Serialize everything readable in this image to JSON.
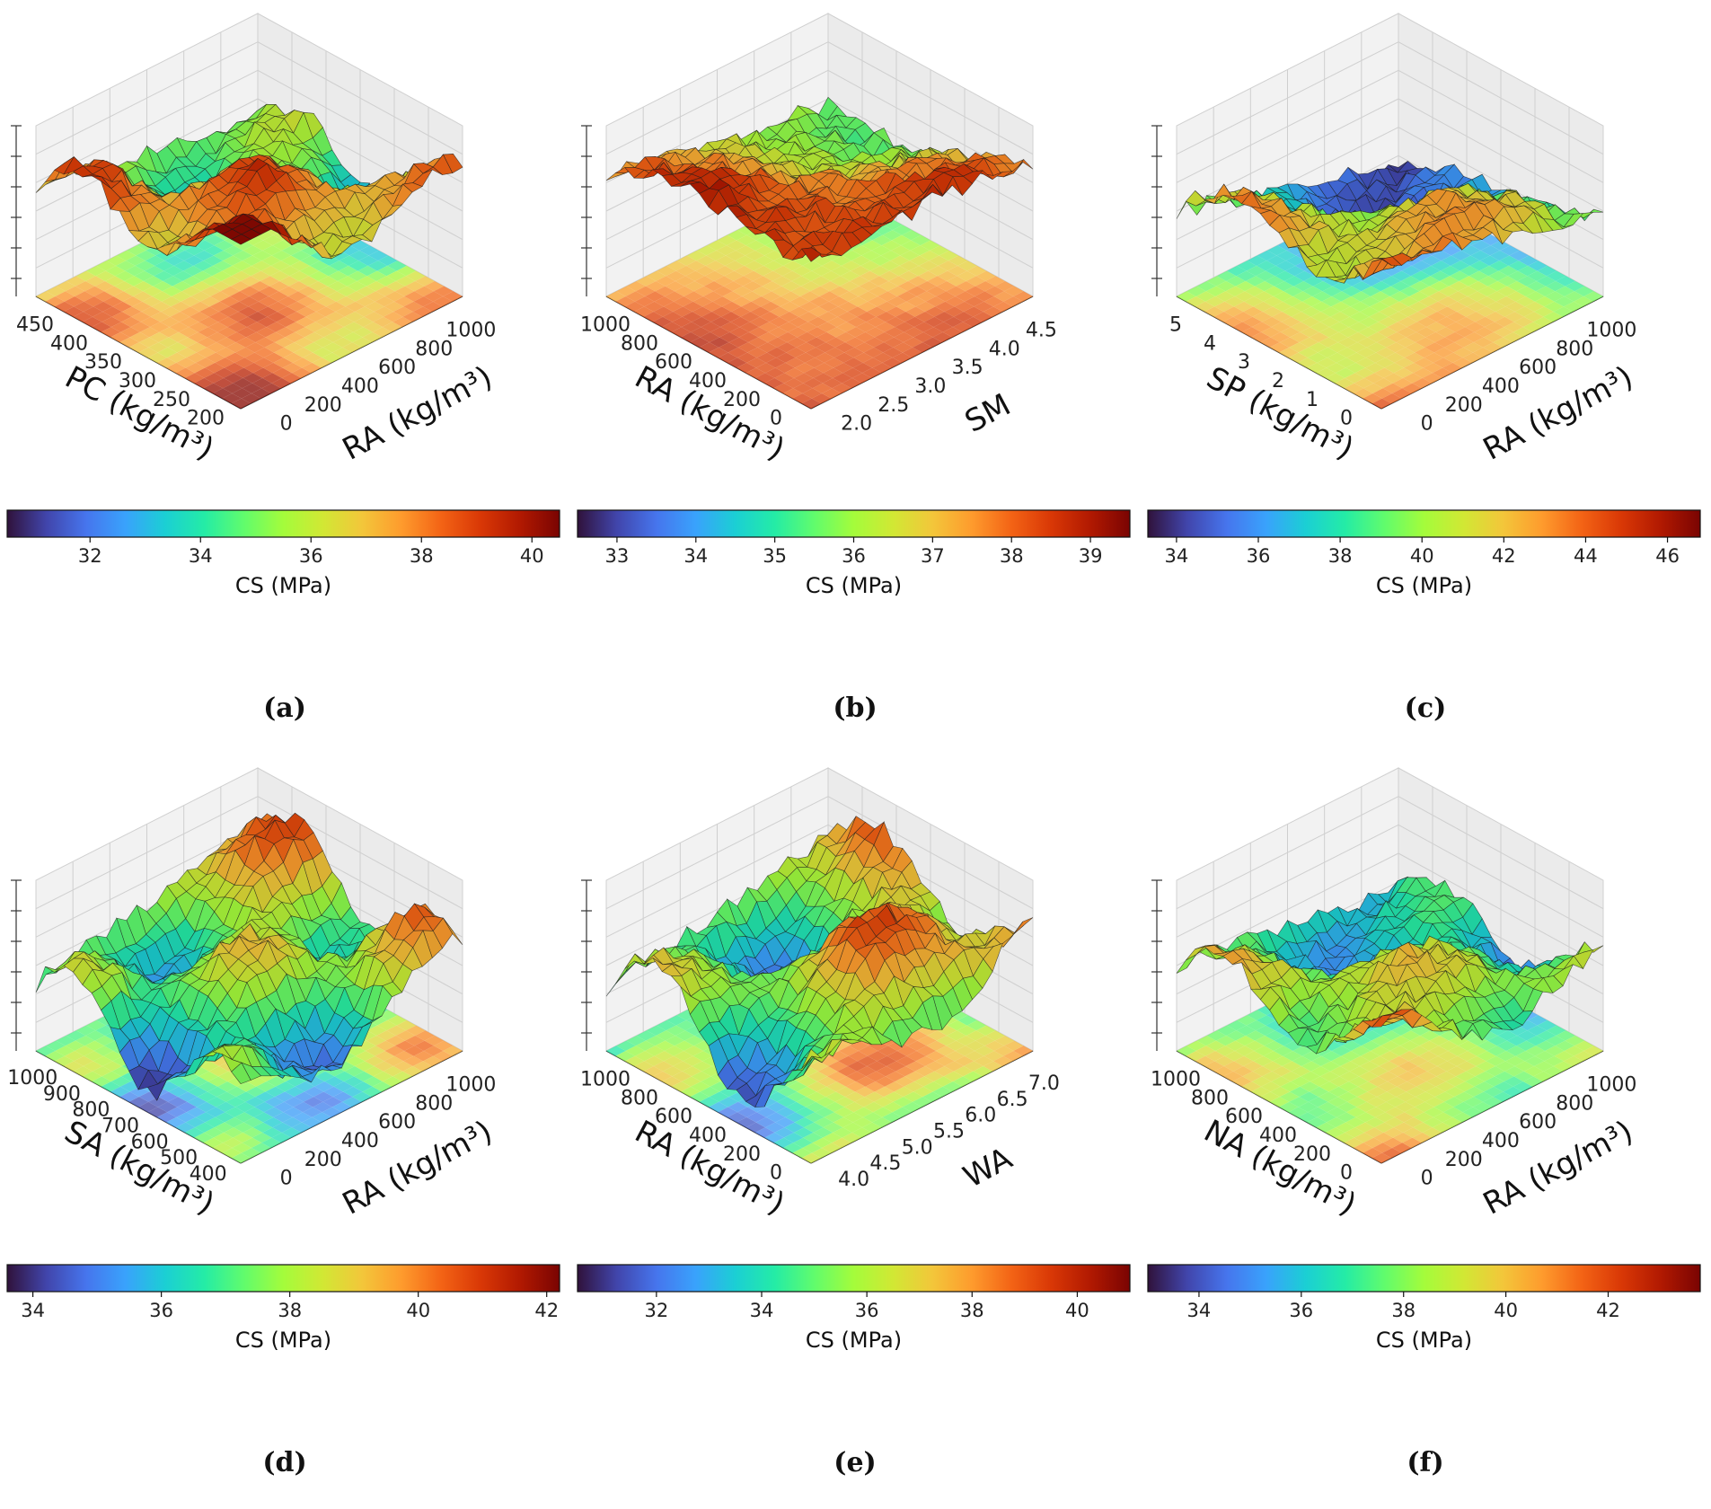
{
  "chart_data": [
    {
      "type": "surface3d",
      "panel": "a",
      "caption": "(a)",
      "xlabel": "PC (kg/m³)",
      "ylabel": "RA (kg/m³)",
      "xticks": [
        "450",
        "400",
        "350",
        "300",
        "250",
        "200"
      ],
      "yticks": [
        "0",
        "200",
        "400",
        "600",
        "800",
        "1000"
      ],
      "colorbar": {
        "label": "CS (MPa)",
        "ticks": [
          "32",
          "34",
          "36",
          "38",
          "40"
        ],
        "range": [
          30.5,
          40.5
        ]
      },
      "zrange": [
        30.5,
        40.5
      ]
    },
    {
      "type": "surface3d",
      "panel": "b",
      "caption": "(b)",
      "xlabel": "RA (kg/m³)",
      "ylabel": "SM",
      "xticks": [
        "1000",
        "800",
        "600",
        "400",
        "200",
        "0"
      ],
      "yticks": [
        "2.0",
        "2.5",
        "3.0",
        "3.5",
        "4.0",
        "4.5"
      ],
      "colorbar": {
        "label": "CS (MPa)",
        "ticks": [
          "33",
          "34",
          "35",
          "36",
          "37",
          "38",
          "39"
        ],
        "range": [
          32.5,
          39.5
        ]
      },
      "zrange": [
        32.5,
        39.5
      ]
    },
    {
      "type": "surface3d",
      "panel": "c",
      "caption": "(c)",
      "xlabel": "SP (kg/m³)",
      "ylabel": "RA (kg/m³)",
      "xticks": [
        "5",
        "4",
        "3",
        "2",
        "1",
        "0"
      ],
      "yticks": [
        "0",
        "200",
        "400",
        "600",
        "800",
        "1000"
      ],
      "colorbar": {
        "label": "CS (MPa)",
        "ticks": [
          "34",
          "36",
          "38",
          "40",
          "42",
          "44",
          "46"
        ],
        "range": [
          33.3,
          46.8
        ]
      },
      "zrange": [
        33.3,
        46.8
      ]
    },
    {
      "type": "surface3d",
      "panel": "d",
      "caption": "(d)",
      "xlabel": "SA (kg/m³)",
      "ylabel": "RA (kg/m³)",
      "xticks": [
        "1000",
        "900",
        "800",
        "700",
        "600",
        "500",
        "400"
      ],
      "yticks": [
        "0",
        "200",
        "400",
        "600",
        "800",
        "1000"
      ],
      "colorbar": {
        "label": "CS (MPa)",
        "ticks": [
          "34",
          "36",
          "38",
          "40",
          "42"
        ],
        "range": [
          33.6,
          42.2
        ]
      },
      "zrange": [
        33.6,
        42.2
      ]
    },
    {
      "type": "surface3d",
      "panel": "e",
      "caption": "(e)",
      "xlabel": "RA (kg/m³)",
      "ylabel": "WA",
      "xticks": [
        "1000",
        "800",
        "600",
        "400",
        "200",
        "0"
      ],
      "yticks": [
        "4.0",
        "4.5",
        "5.0",
        "5.5",
        "6.0",
        "6.5",
        "7.0"
      ],
      "colorbar": {
        "label": "CS (MPa)",
        "ticks": [
          "32",
          "34",
          "36",
          "38",
          "40"
        ],
        "range": [
          30.5,
          41.0
        ]
      },
      "zrange": [
        30.5,
        41.0
      ]
    },
    {
      "type": "surface3d",
      "panel": "f",
      "caption": "(f)",
      "xlabel": "NA (kg/m³)",
      "ylabel": "RA (kg/m³)",
      "xticks": [
        "1000",
        "800",
        "600",
        "400",
        "200",
        "0"
      ],
      "yticks": [
        "0",
        "200",
        "400",
        "600",
        "800",
        "1000"
      ],
      "colorbar": {
        "label": "CS (MPa)",
        "ticks": [
          "34",
          "36",
          "38",
          "40",
          "42"
        ],
        "range": [
          33.0,
          43.8
        ]
      },
      "zrange": [
        33.0,
        43.8
      ]
    }
  ],
  "colormap": [
    "#30123b",
    "#4145ab",
    "#4675ed",
    "#39a2fc",
    "#1bcfd4",
    "#24eca6",
    "#61fc6c",
    "#a4fc3b",
    "#d1e834",
    "#f3c63a",
    "#fe9b2d",
    "#f36315",
    "#d93806",
    "#b11901",
    "#7a0402"
  ]
}
